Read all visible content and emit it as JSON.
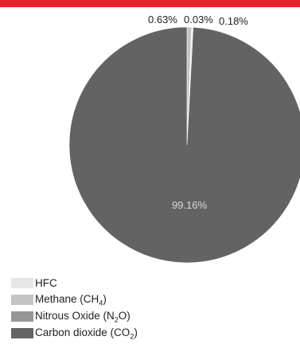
{
  "colors": {
    "accent": "#e8232b",
    "series": [
      "#e6e6e6",
      "#c4c4c4",
      "#969696",
      "#636363"
    ],
    "label_inside": "#d9d9d9",
    "label_outside": "#222222"
  },
  "chart_data": {
    "type": "pie",
    "title": "",
    "series": [
      {
        "name": "HFC",
        "value": 0.18,
        "label": "0.18%"
      },
      {
        "name": "Methane (CH4)",
        "value": 0.63,
        "label": "0.63%"
      },
      {
        "name": "Nitrous Oxide (N2O)",
        "value": 0.03,
        "label": "0.03%"
      },
      {
        "name": "Carbon dioxide (CO2)",
        "value": 99.16,
        "label": "99.16%"
      }
    ],
    "legend_position": "bottom-left"
  }
}
